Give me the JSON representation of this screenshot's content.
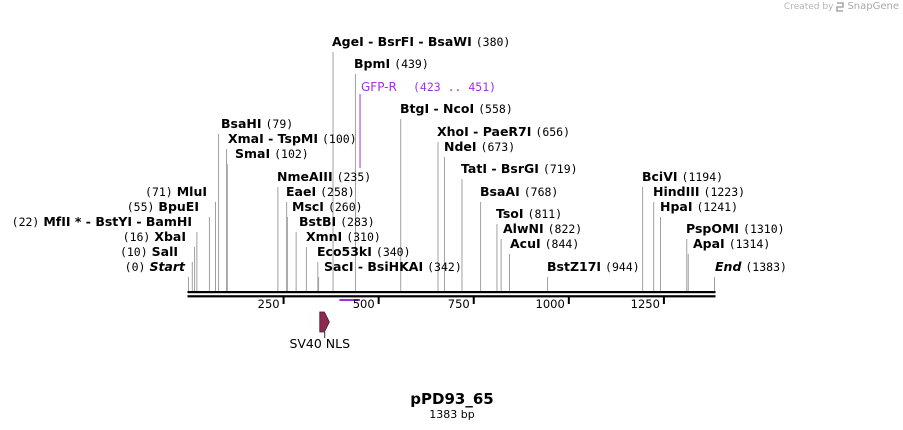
{
  "credit": {
    "prefix": "Created by",
    "brand": "SnapGene"
  },
  "plasmid": {
    "name": "pPD93_65",
    "length_label": "1383 bp",
    "length": 1383
  },
  "colors": {
    "enzyme": "#000000",
    "primer": "#a030e0",
    "feature": "#8b2a52",
    "line": "#a0a0a0",
    "axis": "#000000"
  },
  "axis": {
    "ticks": [
      250,
      500,
      750,
      1000,
      1250
    ]
  },
  "sites": [
    {
      "pos": 0,
      "names": [
        "Start"
      ],
      "italic": true,
      "pos_label": "(0)"
    },
    {
      "pos": 10,
      "names": [
        "SalI"
      ],
      "pos_label": "(10)"
    },
    {
      "pos": 16,
      "names": [
        "XbaI"
      ],
      "pos_label": "(16)"
    },
    {
      "pos": 22,
      "names": [
        "MfII *",
        "BstYI",
        "BamHI"
      ],
      "pos_label": "(22)"
    },
    {
      "pos": 55,
      "names": [
        "BpuEI"
      ],
      "pos_label": "(55)"
    },
    {
      "pos": 71,
      "names": [
        "MluI"
      ],
      "pos_label": "(71)"
    },
    {
      "pos": 79,
      "names": [
        "BsaHI"
      ],
      "pos_label": "(79)"
    },
    {
      "pos": 100,
      "names": [
        "XmaI",
        "TspMI"
      ],
      "pos_label": "(100)"
    },
    {
      "pos": 102,
      "names": [
        "SmaI"
      ],
      "pos_label": "(102)"
    },
    {
      "pos": 235,
      "names": [
        "NmeAIII"
      ],
      "pos_label": "(235)"
    },
    {
      "pos": 258,
      "names": [
        "EaeI"
      ],
      "pos_label": "(258)"
    },
    {
      "pos": 260,
      "names": [
        "MscI"
      ],
      "pos_label": "(260)"
    },
    {
      "pos": 283,
      "names": [
        "BstBI"
      ],
      "pos_label": "(283)"
    },
    {
      "pos": 310,
      "names": [
        "XmnI"
      ],
      "pos_label": "(310)"
    },
    {
      "pos": 340,
      "names": [
        "Eco53kI"
      ],
      "pos_label": "(340)"
    },
    {
      "pos": 342,
      "names": [
        "SacI",
        "BsiHKAI"
      ],
      "pos_label": "(342)"
    },
    {
      "pos": 380,
      "names": [
        "AgeI",
        "BsrFI",
        "BsaWI"
      ],
      "pos_label": "(380)"
    },
    {
      "pos": 439,
      "names": [
        "BpmI"
      ],
      "pos_label": "(439)"
    },
    {
      "pos": 558,
      "names": [
        "BtgI",
        "NcoI"
      ],
      "pos_label": "(558)"
    },
    {
      "pos": 656,
      "names": [
        "XhoI",
        "PaeR7I"
      ],
      "pos_label": "(656)"
    },
    {
      "pos": 673,
      "names": [
        "NdeI"
      ],
      "pos_label": "(673)"
    },
    {
      "pos": 719,
      "names": [
        "TatI",
        "BsrGI"
      ],
      "pos_label": "(719)"
    },
    {
      "pos": 768,
      "names": [
        "BsaAI"
      ],
      "pos_label": "(768)"
    },
    {
      "pos": 811,
      "names": [
        "TsoI"
      ],
      "pos_label": "(811)"
    },
    {
      "pos": 822,
      "names": [
        "AlwNI"
      ],
      "pos_label": "(822)"
    },
    {
      "pos": 844,
      "names": [
        "AcuI"
      ],
      "pos_label": "(844)"
    },
    {
      "pos": 944,
      "names": [
        "BstZ17I"
      ],
      "pos_label": "(944)"
    },
    {
      "pos": 1194,
      "names": [
        "BciVI"
      ],
      "pos_label": "(1194)"
    },
    {
      "pos": 1223,
      "names": [
        "HindIII"
      ],
      "pos_label": "(1223)"
    },
    {
      "pos": 1241,
      "names": [
        "HpaI"
      ],
      "pos_label": "(1241)"
    },
    {
      "pos": 1310,
      "names": [
        "PspOMI"
      ],
      "pos_label": "(1310)"
    },
    {
      "pos": 1314,
      "names": [
        "ApaI"
      ],
      "pos_label": "(1314)"
    },
    {
      "pos": 1383,
      "names": [
        "End"
      ],
      "italic": true,
      "pos_label": "(1383)"
    }
  ],
  "primer": {
    "name": "GFP-R",
    "range_label": "(423 .. 451)",
    "start": 423,
    "end": 451
  },
  "feature": {
    "name": "SV40 NLS",
    "start": 353,
    "end": 373
  }
}
